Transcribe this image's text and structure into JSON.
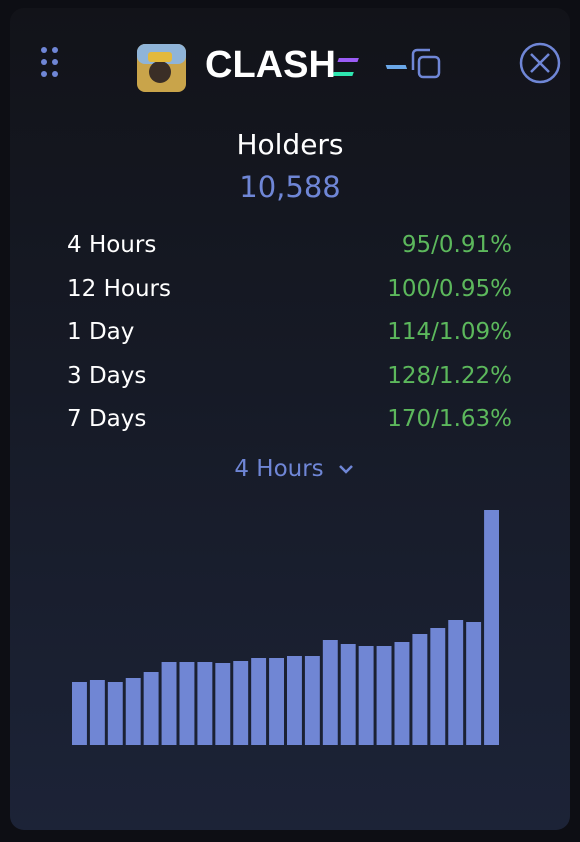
{
  "header": {
    "title": "CLASH"
  },
  "summary": {
    "label": "Holders",
    "value": "10,588"
  },
  "stats": [
    {
      "label": "4 Hours",
      "value": "95/0.91%"
    },
    {
      "label": "12 Hours",
      "value": "100/0.95%"
    },
    {
      "label": "1 Day",
      "value": "114/1.09%"
    },
    {
      "label": "3 Days",
      "value": "128/1.22%"
    },
    {
      "label": "7 Days",
      "value": "170/1.63%"
    }
  ],
  "period_selector": {
    "label": "4 Hours"
  },
  "chart_data": {
    "type": "bar",
    "color": "#7086d4",
    "values": [
      63,
      65,
      63,
      67,
      73,
      83,
      83,
      83,
      82,
      84,
      87,
      87,
      89,
      89,
      105,
      101,
      99,
      99,
      103,
      111,
      117,
      125,
      123,
      235
    ]
  }
}
